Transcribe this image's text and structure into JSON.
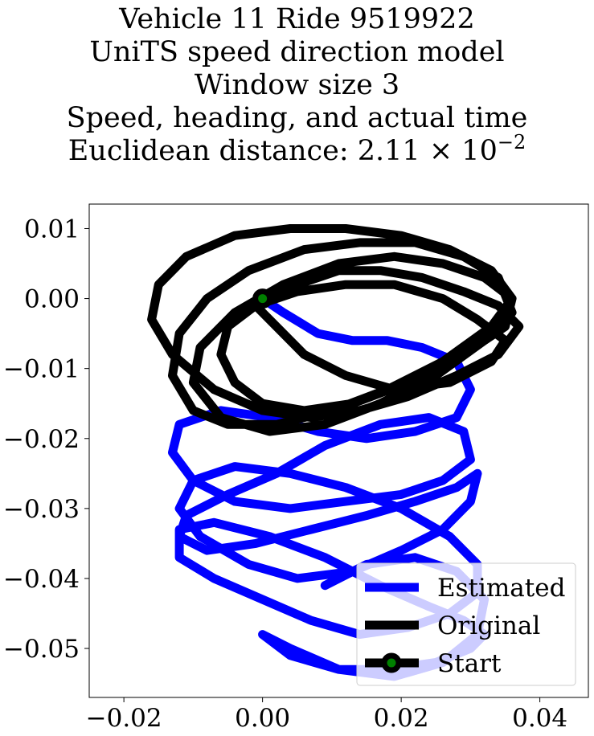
{
  "chart_data": {
    "type": "line",
    "title_lines": [
      "Vehicle 11 Ride 9519922",
      "UniTS speed direction model",
      "Window size 3",
      "Speed, heading, and actual time"
    ],
    "euclidean_label": "Euclidean distance: ",
    "euclidean_mantissa": "2.11",
    "euclidean_times": "×",
    "euclidean_base": "10",
    "euclidean_exponent": "−2",
    "xlabel": "",
    "ylabel": "",
    "xlim": [
      -0.025,
      0.047
    ],
    "ylim": [
      -0.057,
      0.0135
    ],
    "xticks": [
      -0.02,
      0.0,
      0.02,
      0.04
    ],
    "xtick_labels": [
      "−0.02",
      "0.00",
      "0.02",
      "0.04"
    ],
    "yticks": [
      0.01,
      0.0,
      -0.01,
      -0.02,
      -0.03,
      -0.04,
      -0.05
    ],
    "ytick_labels": [
      "0.01",
      "0.00",
      "−0.01",
      "−0.02",
      "−0.03",
      "−0.04",
      "−0.05"
    ],
    "grid": false,
    "legend_position": "lower-right",
    "series": [
      {
        "name": "Estimated",
        "color": "#0000ff",
        "x": [
          0.0,
          0.003,
          0.008,
          0.013,
          0.018,
          0.023,
          0.028,
          0.03,
          0.028,
          0.022,
          0.015,
          0.008,
          0.001,
          -0.006,
          -0.012,
          -0.013,
          -0.01,
          -0.004,
          0.004,
          0.012,
          0.02,
          0.026,
          0.03,
          0.029,
          0.024,
          0.017,
          0.009,
          0.002,
          -0.005,
          -0.011,
          -0.012,
          -0.008,
          -0.001,
          0.007,
          0.015,
          0.022,
          0.028,
          0.031,
          0.03,
          0.026,
          0.02,
          0.013,
          0.005,
          -0.002,
          -0.009,
          -0.012,
          -0.01,
          -0.004,
          0.004,
          0.012,
          0.02,
          0.027,
          0.031,
          0.031,
          0.027,
          0.021,
          0.014,
          0.007,
          0.0,
          -0.007,
          -0.012,
          -0.012,
          -0.007,
          0.001,
          0.009,
          0.017,
          0.024,
          0.029,
          0.032,
          0.03,
          0.025,
          0.018,
          0.011,
          0.004,
          0.0,
          0.004,
          0.011,
          0.019,
          0.026,
          0.031,
          0.032,
          0.028,
          0.022,
          0.015,
          0.009
        ],
        "y": [
          0.0,
          -0.002,
          -0.005,
          -0.006,
          -0.006,
          -0.007,
          -0.009,
          -0.013,
          -0.017,
          -0.019,
          -0.02,
          -0.019,
          -0.017,
          -0.016,
          -0.018,
          -0.022,
          -0.026,
          -0.029,
          -0.03,
          -0.029,
          -0.028,
          -0.026,
          -0.023,
          -0.019,
          -0.017,
          -0.018,
          -0.021,
          -0.025,
          -0.028,
          -0.031,
          -0.034,
          -0.036,
          -0.035,
          -0.033,
          -0.031,
          -0.029,
          -0.027,
          -0.025,
          -0.029,
          -0.033,
          -0.036,
          -0.039,
          -0.04,
          -0.038,
          -0.034,
          -0.03,
          -0.026,
          -0.024,
          -0.025,
          -0.027,
          -0.03,
          -0.034,
          -0.038,
          -0.042,
          -0.045,
          -0.047,
          -0.048,
          -0.046,
          -0.043,
          -0.04,
          -0.037,
          -0.033,
          -0.032,
          -0.034,
          -0.037,
          -0.041,
          -0.044,
          -0.046,
          -0.048,
          -0.05,
          -0.052,
          -0.053,
          -0.053,
          -0.051,
          -0.048,
          -0.05,
          -0.053,
          -0.054,
          -0.052,
          -0.048,
          -0.043,
          -0.039,
          -0.037,
          -0.038,
          -0.041
        ]
      },
      {
        "name": "Original",
        "color": "#000000",
        "x": [
          0.0,
          0.005,
          0.011,
          0.017,
          0.023,
          0.029,
          0.034,
          0.037,
          0.034,
          0.028,
          0.021,
          0.014,
          0.007,
          0.0,
          -0.007,
          -0.013,
          -0.016,
          -0.015,
          -0.011,
          -0.004,
          0.004,
          0.012,
          0.02,
          0.027,
          0.033,
          0.036,
          0.033,
          0.026,
          0.018,
          0.01,
          0.002,
          -0.005,
          -0.01,
          -0.013,
          -0.012,
          -0.008,
          -0.002,
          0.006,
          0.014,
          0.022,
          0.029,
          0.034,
          0.036,
          0.032,
          0.025,
          0.017,
          0.009,
          0.001,
          -0.006,
          -0.01,
          -0.009,
          -0.004,
          0.003,
          0.011,
          0.019,
          0.026,
          0.032,
          0.036,
          0.035,
          0.029,
          0.021,
          0.013,
          0.006,
          0.0,
          -0.004,
          -0.006,
          -0.005,
          -0.001,
          0.005,
          0.012,
          0.019,
          0.026,
          0.031,
          0.035,
          0.033,
          0.027,
          0.019,
          0.012,
          0.006,
          0.002,
          -0.001,
          0.0
        ],
        "y": [
          0.0,
          0.002,
          0.004,
          0.004,
          0.003,
          0.001,
          -0.001,
          -0.004,
          -0.008,
          -0.011,
          -0.014,
          -0.016,
          -0.017,
          -0.016,
          -0.013,
          -0.008,
          -0.003,
          0.002,
          0.006,
          0.009,
          0.01,
          0.01,
          0.009,
          0.007,
          0.004,
          0.0,
          -0.004,
          -0.009,
          -0.013,
          -0.016,
          -0.018,
          -0.018,
          -0.016,
          -0.011,
          -0.005,
          0.0,
          0.004,
          0.007,
          0.008,
          0.008,
          0.006,
          0.003,
          -0.002,
          -0.006,
          -0.011,
          -0.015,
          -0.018,
          -0.019,
          -0.017,
          -0.012,
          -0.007,
          -0.002,
          0.002,
          0.005,
          0.006,
          0.005,
          0.003,
          0.0,
          -0.004,
          -0.008,
          -0.012,
          -0.015,
          -0.016,
          -0.015,
          -0.012,
          -0.008,
          -0.004,
          -0.001,
          0.001,
          0.002,
          0.002,
          0.0,
          -0.003,
          -0.006,
          -0.009,
          -0.012,
          -0.013,
          -0.011,
          -0.008,
          -0.004,
          -0.001,
          0.0
        ]
      }
    ],
    "start_marker": {
      "name": "Start",
      "x": 0.0,
      "y": 0.0,
      "face_color": "#008000",
      "edge_color": "#000000"
    }
  }
}
